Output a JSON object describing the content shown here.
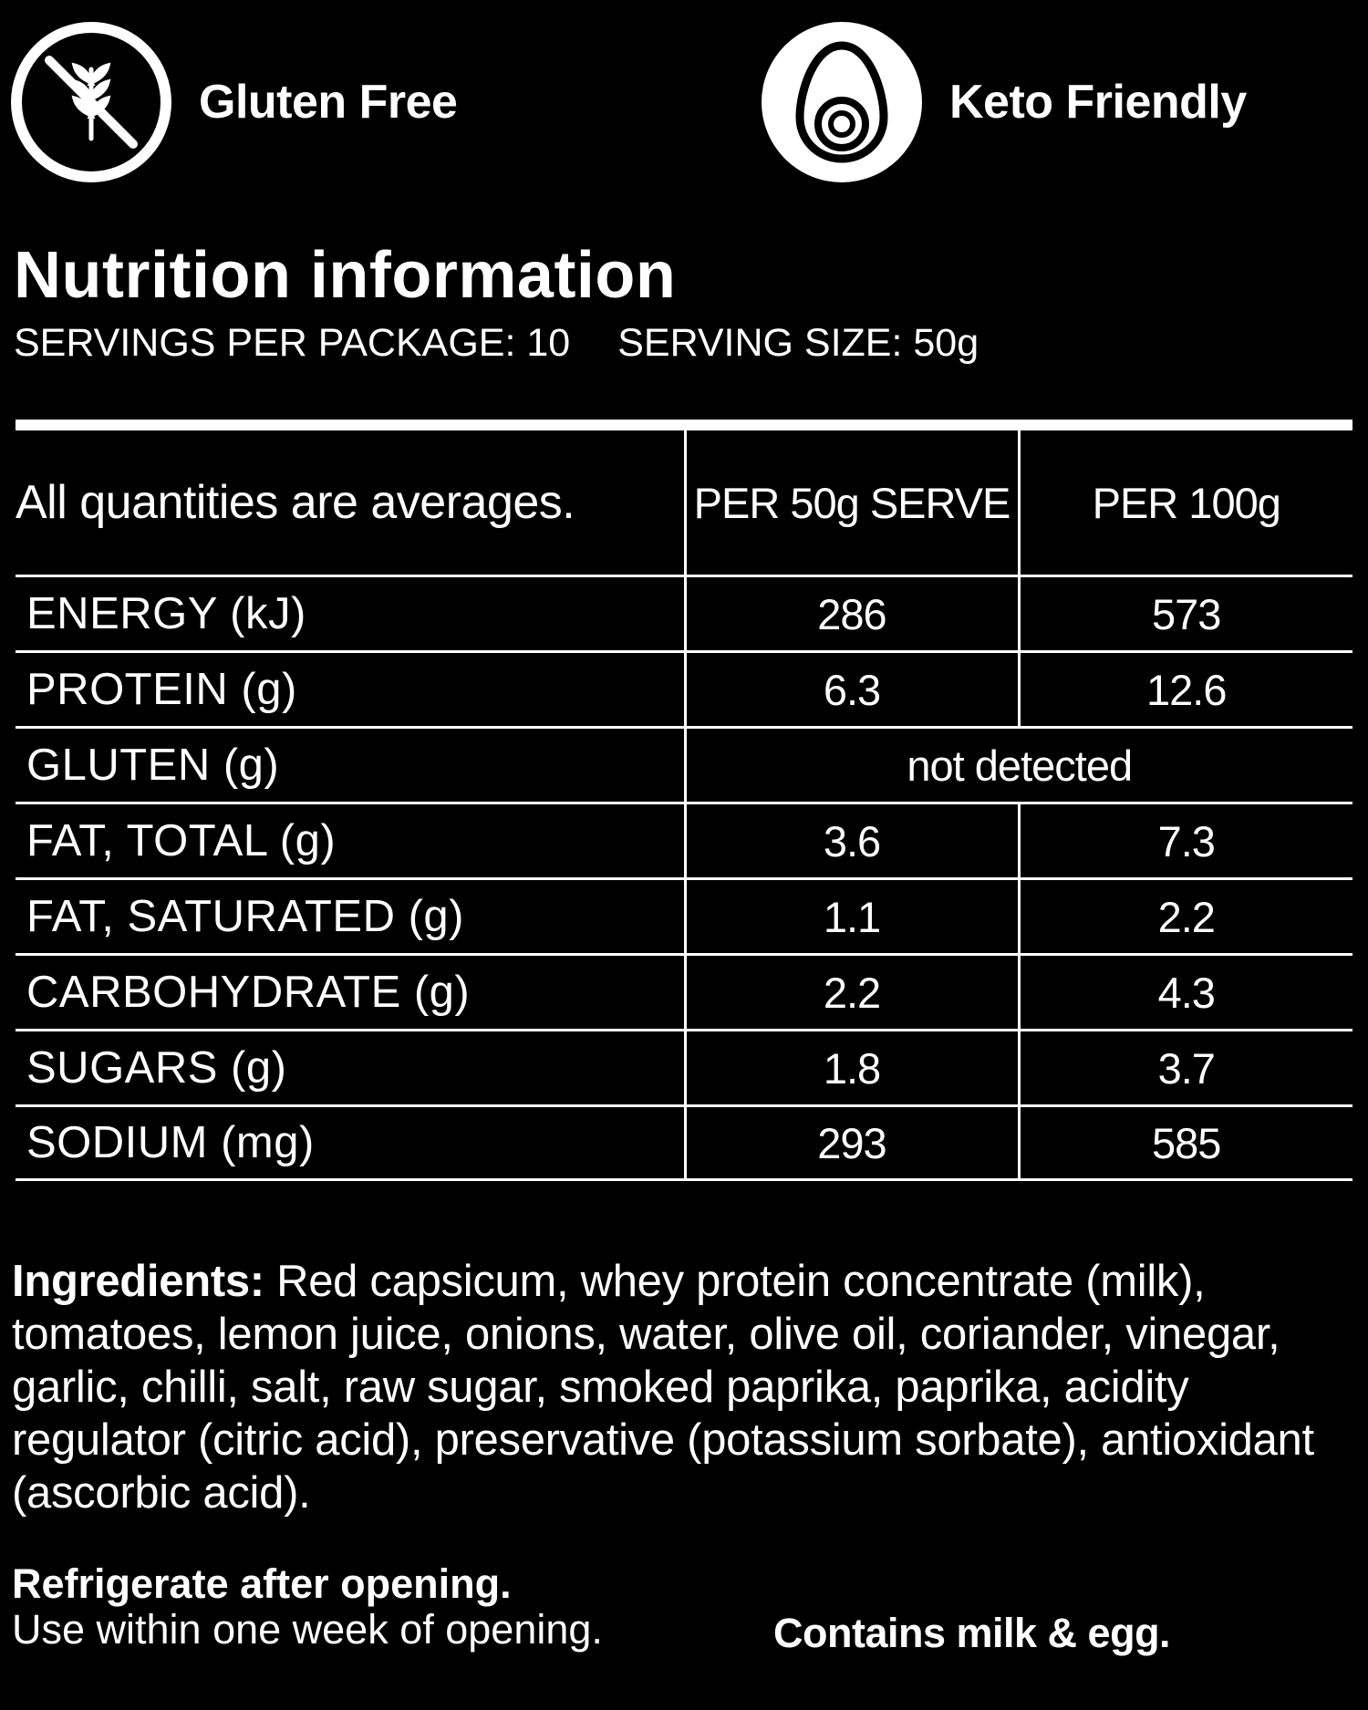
{
  "badges": {
    "gluten_free": {
      "label": "Gluten Free",
      "icon": "no-wheat-icon"
    },
    "keto": {
      "label": "Keto Friendly",
      "icon": "egg-icon"
    }
  },
  "nutrition": {
    "title": "Nutrition information",
    "servings_per_package": "SERVINGS PER PACKAGE: 10",
    "serving_size": "SERVING SIZE: 50g",
    "table": {
      "header": {
        "label": "All quantities are averages.",
        "col_a": "PER 50g SERVE",
        "col_b": "PER 100g"
      },
      "rows": [
        {
          "name": "ENERGY (kJ)",
          "a": "286",
          "b": "573"
        },
        {
          "name": "PROTEIN (g)",
          "a": "6.3",
          "b": "12.6"
        },
        {
          "name": "GLUTEN (g)",
          "merged": "not detected"
        },
        {
          "name": "FAT, TOTAL (g)",
          "a": "3.6",
          "b": "7.3"
        },
        {
          "name": "FAT, SATURATED (g)",
          "a": "1.1",
          "b": "2.2"
        },
        {
          "name": "CARBOHYDRATE (g)",
          "a": "2.2",
          "b": "4.3"
        },
        {
          "name": "SUGARS (g)",
          "a": "1.8",
          "b": "3.7"
        },
        {
          "name": "SODIUM (mg)",
          "a": "293",
          "b": "585"
        }
      ]
    }
  },
  "ingredients": {
    "label": "Ingredients:",
    "text": " Red capsicum, whey protein concentrate (milk), tomatoes, lemon juice, onions, water, olive oil, coriander, vinegar, garlic, chilli, salt, raw sugar, smoked paprika, paprika, acidity regulator (citric acid), preservative (potassium sorbate), antioxidant (ascorbic acid)."
  },
  "storage": {
    "line1": "Refrigerate after opening.",
    "line2": "Use within one week of opening."
  },
  "allergen": "Contains milk & egg.",
  "colors": {
    "background": "#000000",
    "foreground": "#ffffff"
  }
}
